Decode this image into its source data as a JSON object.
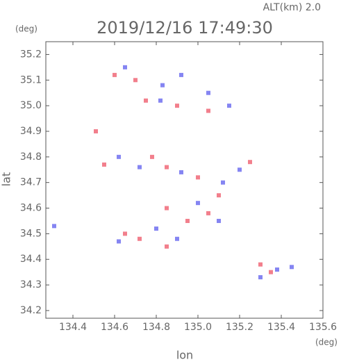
{
  "chart_data": {
    "type": "scatter",
    "title": "2019/12/16 17:49:30",
    "subtitle": "ALT(km) 2.0",
    "y_unit": "(deg)",
    "x_unit": "(deg)",
    "xlabel": "lon",
    "ylabel": "lat",
    "xlim": [
      134.27,
      135.6
    ],
    "ylim": [
      34.17,
      35.25
    ],
    "xticks": [
      134.4,
      134.6,
      134.8,
      {
        "value": 135,
        "label": "135.0"
      },
      135.2,
      135.4,
      135.6
    ],
    "yticks": [
      34.2,
      34.3,
      34.4,
      34.5,
      34.6,
      34.7,
      34.8,
      34.9,
      {
        "value": 35,
        "label": "35.0"
      },
      35.1,
      35.2
    ],
    "series": [
      {
        "color": "#f06878",
        "x": [
          134.6,
          134.7,
          134.75,
          134.9,
          135.05,
          134.55,
          134.78,
          134.85,
          135.0,
          135.1,
          134.85,
          134.65,
          134.72,
          134.95,
          135.05,
          135.3,
          135.35,
          135.25,
          134.51,
          134.85
        ],
        "values": [
          35.12,
          35.1,
          35.02,
          35.0,
          34.98,
          34.77,
          34.8,
          34.76,
          34.72,
          34.65,
          34.6,
          34.5,
          34.48,
          34.55,
          34.58,
          34.38,
          34.35,
          34.78,
          34.9,
          34.45
        ]
      },
      {
        "color": "#7070f0",
        "x": [
          134.65,
          134.83,
          134.92,
          135.05,
          135.15,
          134.82,
          134.62,
          134.72,
          134.92,
          135.12,
          135.0,
          134.8,
          134.62,
          135.1,
          135.3,
          135.38,
          134.31,
          135.45,
          134.9,
          135.2
        ],
        "values": [
          35.15,
          35.08,
          35.12,
          35.05,
          35.0,
          35.02,
          34.8,
          34.76,
          34.74,
          34.7,
          34.62,
          34.52,
          34.47,
          34.55,
          34.33,
          34.36,
          34.53,
          34.37,
          34.48,
          34.75
        ]
      }
    ]
  }
}
